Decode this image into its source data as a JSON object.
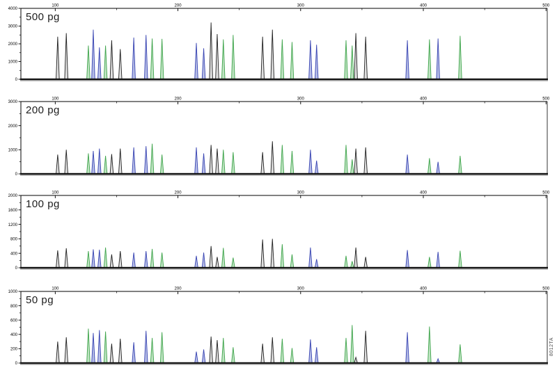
{
  "figure": {
    "code_label": "8012TA",
    "colors": {
      "blue": "#3844b2",
      "blue_light": "#b6bde6",
      "green": "#3ea44b",
      "green_light": "#bfe3c2",
      "black": "#1f1f1f",
      "black_light": "#e0e0e0",
      "axis": "#000000",
      "baseline": "#151515",
      "baseline_shadow": "#9a9a9a"
    }
  },
  "chart_data": {
    "type": "line",
    "description": "Four stacked electropherogram panels showing STR amplification peaks (RFU vs size in bases) at decreasing DNA template amounts. Peak x positions are shared across panels; heights differ per panel.",
    "x_axis": {
      "min": 72,
      "max": 501,
      "major_ticks": [
        100,
        200,
        300,
        400,
        500
      ],
      "minor_ticks": [
        150,
        250,
        350,
        450
      ]
    },
    "panels": [
      {
        "label": "500 pg",
        "ylim": [
          0,
          4000
        ],
        "yticks": [
          0,
          1000,
          2000,
          3000,
          4000
        ]
      },
      {
        "label": "200 pg",
        "ylim": [
          0,
          3000
        ],
        "yticks": [
          0,
          1000,
          2000,
          3000
        ]
      },
      {
        "label": "100 pg",
        "ylim": [
          0,
          2000
        ],
        "yticks": [
          0,
          400,
          800,
          1200,
          1600,
          2000
        ]
      },
      {
        "label": "50 pg",
        "ylim": [
          0,
          1000
        ],
        "yticks": [
          0,
          200,
          400,
          600,
          800,
          1000
        ]
      }
    ],
    "peaks": [
      {
        "x": 102,
        "color": "black",
        "heights": [
          2400,
          800,
          480,
          300
        ]
      },
      {
        "x": 109,
        "color": "black",
        "heights": [
          2600,
          1000,
          540,
          360
        ]
      },
      {
        "x": 127,
        "color": "green",
        "heights": [
          1900,
          850,
          460,
          480
        ]
      },
      {
        "x": 131,
        "color": "blue",
        "heights": [
          2800,
          950,
          510,
          420
        ]
      },
      {
        "x": 136,
        "color": "blue",
        "heights": [
          1800,
          1050,
          500,
          460
        ]
      },
      {
        "x": 141,
        "color": "green",
        "heights": [
          1900,
          750,
          560,
          440
        ]
      },
      {
        "x": 146,
        "color": "black",
        "heights": [
          2200,
          820,
          370,
          270
        ]
      },
      {
        "x": 153,
        "color": "black",
        "heights": [
          1700,
          1050,
          460,
          340
        ]
      },
      {
        "x": 164,
        "color": "blue",
        "heights": [
          2350,
          1100,
          420,
          290
        ]
      },
      {
        "x": 174,
        "color": "blue",
        "heights": [
          2500,
          1150,
          460,
          450
        ]
      },
      {
        "x": 179,
        "color": "green",
        "heights": [
          2300,
          1250,
          520,
          350
        ]
      },
      {
        "x": 187,
        "color": "green",
        "heights": [
          2280,
          800,
          420,
          430
        ]
      },
      {
        "x": 215,
        "color": "blue",
        "heights": [
          2050,
          1100,
          330,
          160
        ]
      },
      {
        "x": 221,
        "color": "blue",
        "heights": [
          1750,
          850,
          420,
          190
        ]
      },
      {
        "x": 227,
        "color": "black",
        "heights": [
          3200,
          1200,
          600,
          370
        ]
      },
      {
        "x": 232,
        "color": "black",
        "heights": [
          2550,
          1050,
          300,
          320
        ]
      },
      {
        "x": 237,
        "color": "green",
        "heights": [
          2250,
          1000,
          550,
          350
        ]
      },
      {
        "x": 245,
        "color": "green",
        "heights": [
          2500,
          900,
          280,
          220
        ]
      },
      {
        "x": 269,
        "color": "black",
        "heights": [
          2400,
          900,
          780,
          270
        ]
      },
      {
        "x": 277,
        "color": "black",
        "heights": [
          2800,
          1350,
          800,
          360
        ]
      },
      {
        "x": 285,
        "color": "green",
        "heights": [
          2250,
          1200,
          650,
          340
        ]
      },
      {
        "x": 293,
        "color": "green",
        "heights": [
          2100,
          950,
          370,
          210
        ]
      },
      {
        "x": 308,
        "color": "blue",
        "heights": [
          2200,
          1000,
          560,
          330
        ]
      },
      {
        "x": 313,
        "color": "blue",
        "heights": [
          1950,
          550,
          240,
          220
        ]
      },
      {
        "x": 337,
        "color": "green",
        "heights": [
          2200,
          1200,
          330,
          350
        ]
      },
      {
        "x": 342,
        "color": "green",
        "heights": [
          1900,
          600,
          180,
          530
        ]
      },
      {
        "x": 345,
        "color": "black",
        "heights": [
          2600,
          1050,
          560,
          80
        ]
      },
      {
        "x": 353,
        "color": "black",
        "heights": [
          2400,
          1100,
          300,
          450
        ]
      },
      {
        "x": 387,
        "color": "blue",
        "heights": [
          2200,
          800,
          490,
          430
        ]
      },
      {
        "x": 405,
        "color": "green",
        "heights": [
          2250,
          650,
          300,
          510
        ]
      },
      {
        "x": 412,
        "color": "blue",
        "heights": [
          2300,
          500,
          440,
          60
        ]
      },
      {
        "x": 430,
        "color": "green",
        "heights": [
          2450,
          750,
          470,
          260
        ]
      }
    ]
  }
}
